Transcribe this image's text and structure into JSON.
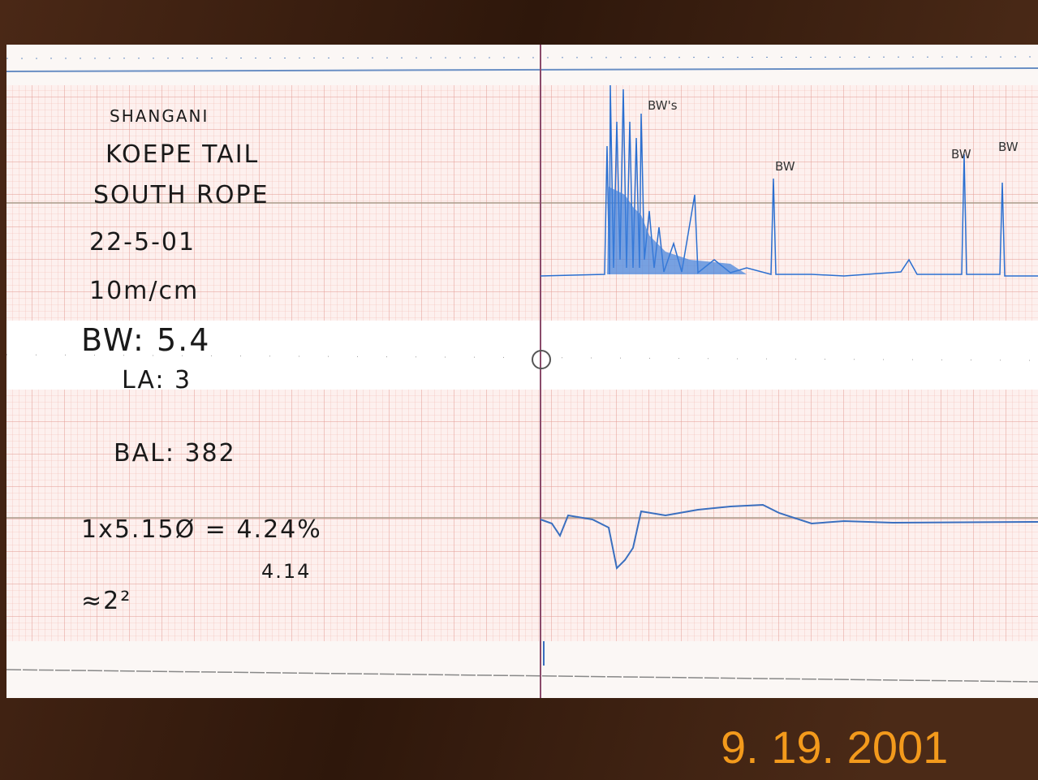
{
  "notes": {
    "line1": "SHANGANI",
    "line2": "KOEPE TAIL",
    "line3": "SOUTH ROPE",
    "date": "22-5-01",
    "scale": "10m/cm",
    "bw": "BW: 5.4",
    "la": "LA: 3",
    "bal": "BAL: 382",
    "calc": "1x5.15Ø = 4.24%",
    "calc_alt": "4.14",
    "approx": "≈2²"
  },
  "annotations": [
    "BW's",
    "BW",
    "BW",
    "BW"
  ],
  "date_stamp": "9. 19. 2001"
}
